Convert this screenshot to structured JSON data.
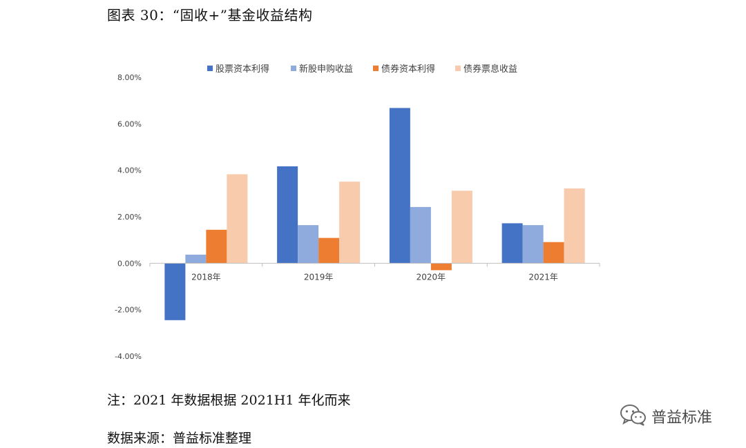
{
  "figure": {
    "title": "图表 30：“固收+”基金收益结构",
    "note": "注：2021 年数据根据 2021H1 年化而来",
    "source": "数据来源：普益标准整理"
  },
  "watermark": {
    "text": "普益标准",
    "icon": "wechat-icon"
  },
  "chart_data": {
    "type": "bar",
    "title": "",
    "xlabel": "",
    "ylabel": "",
    "categories": [
      "2018年",
      "2019年",
      "2020年",
      "2021年"
    ],
    "series": [
      {
        "name": "股票资本利得",
        "color": "#4472C4",
        "values": [
          -2.45,
          4.17,
          6.68,
          1.72
        ]
      },
      {
        "name": "新股申购收益",
        "color": "#8FAADC",
        "values": [
          0.37,
          1.64,
          2.42,
          1.64
        ]
      },
      {
        "name": "债券资本利得",
        "color": "#ED7D31",
        "values": [
          1.44,
          1.09,
          -0.3,
          0.91
        ]
      },
      {
        "name": "债券票息收益",
        "color": "#F8CBAD",
        "values": [
          3.83,
          3.51,
          3.12,
          3.22
        ]
      }
    ],
    "ylim": [
      -4,
      8
    ],
    "yticks": [
      -4,
      -2,
      0,
      2,
      4,
      6,
      8
    ],
    "ytick_labels": [
      "-4.00%",
      "-2.00%",
      "0.00%",
      "2.00%",
      "4.00%",
      "6.00%",
      "8.00%"
    ],
    "grid": false,
    "legend_position": "top"
  }
}
